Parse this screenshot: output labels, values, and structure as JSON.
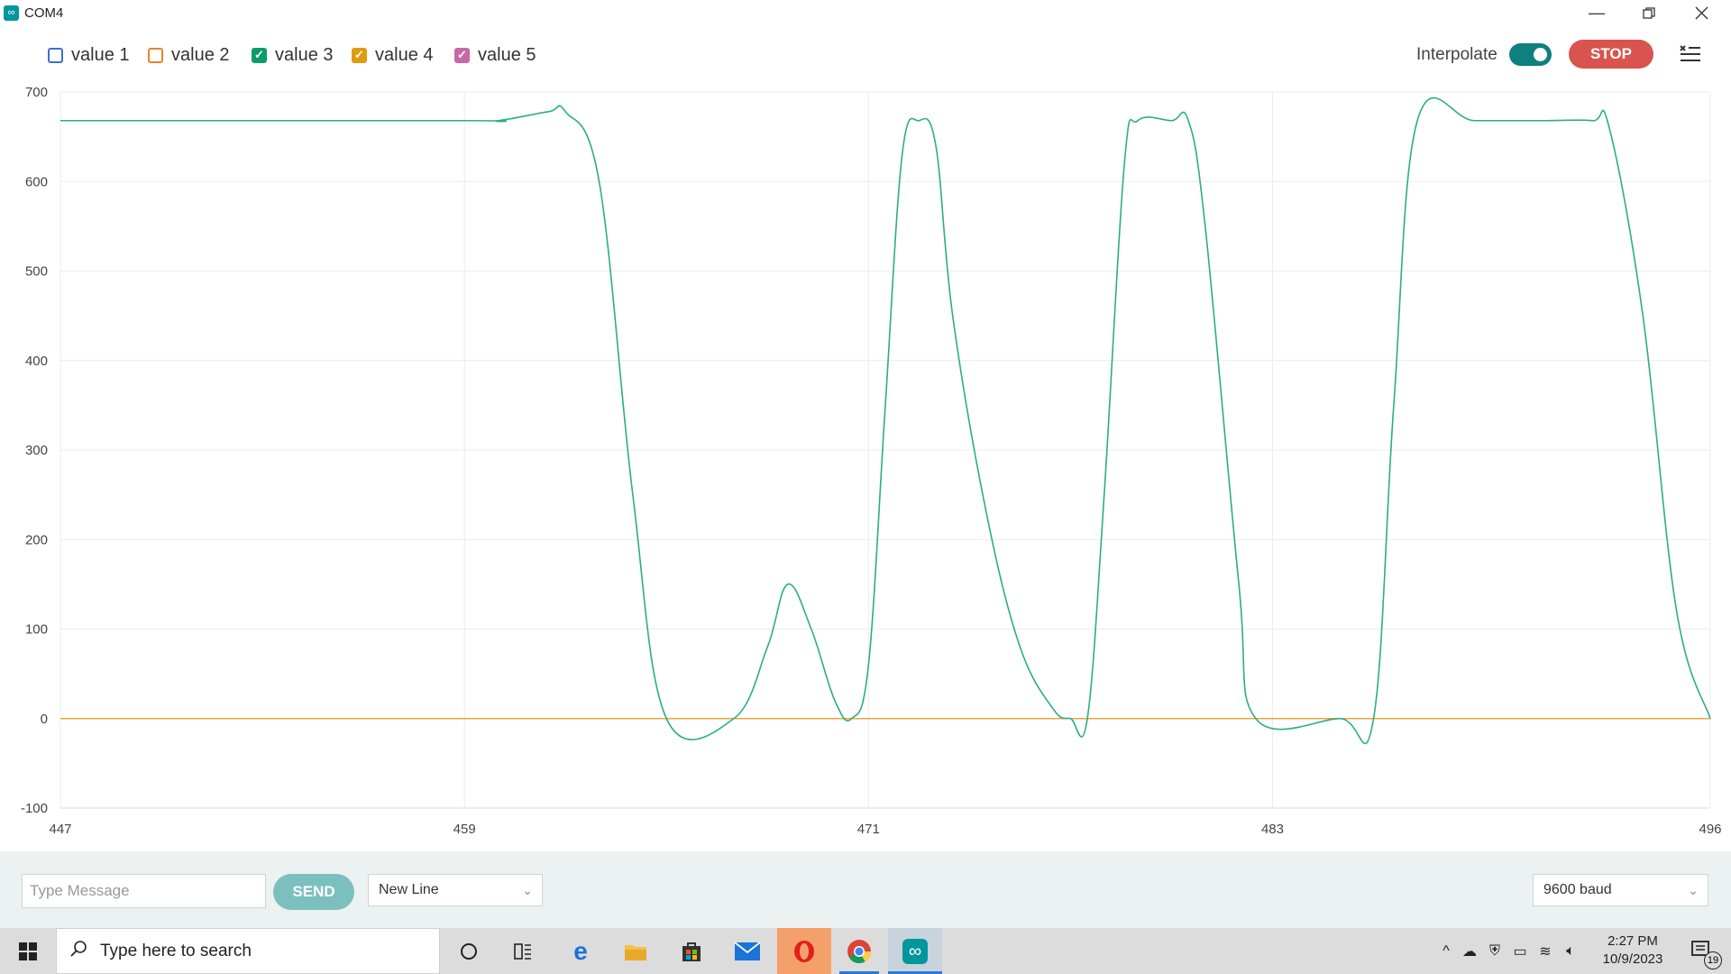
{
  "window": {
    "title": "COM4",
    "app_icon": "arduino-icon",
    "controls": [
      "minimize-icon",
      "restore-icon",
      "close-icon"
    ]
  },
  "legend": [
    {
      "label": "value 1",
      "checked": false,
      "color": "#3f6fd0"
    },
    {
      "label": "value 2",
      "checked": false,
      "color": "#e8832a"
    },
    {
      "label": "value 3",
      "checked": true,
      "color": "#0c9c6c"
    },
    {
      "label": "value 4",
      "checked": true,
      "color": "#e09b10"
    },
    {
      "label": "value 5",
      "checked": true,
      "color": "#c66aa6"
    }
  ],
  "toolbar": {
    "interpolate_label": "Interpolate",
    "interpolate_on": true,
    "stop_label": "STOP",
    "menu_icon": "clear-list-icon"
  },
  "chart_data": {
    "type": "line",
    "title": "",
    "xlabel": "",
    "ylabel": "",
    "xlim": [
      447,
      496
    ],
    "ylim": [
      -100,
      700
    ],
    "x_ticks": [
      447,
      459,
      471,
      483,
      496
    ],
    "y_ticks": [
      700,
      600,
      500,
      400,
      300,
      200,
      100,
      0,
      -100
    ],
    "grid": true,
    "interpolated": true,
    "series": [
      {
        "name": "value 3",
        "color": "#2bae84",
        "points": [
          [
            447,
            668
          ],
          [
            459,
            668
          ],
          [
            460,
            668
          ],
          [
            461.5,
            678
          ],
          [
            462,
            678
          ],
          [
            463,
            600
          ],
          [
            464,
            250
          ],
          [
            465,
            0
          ],
          [
            467,
            0
          ],
          [
            468,
            80
          ],
          [
            468.6,
            150
          ],
          [
            469.3,
            100
          ],
          [
            470,
            20
          ],
          [
            470.5,
            0
          ],
          [
            471,
            60
          ],
          [
            471.5,
            350
          ],
          [
            472,
            630
          ],
          [
            472.5,
            668
          ],
          [
            473,
            640
          ],
          [
            473.5,
            450
          ],
          [
            474.5,
            230
          ],
          [
            475.5,
            80
          ],
          [
            476.5,
            10
          ],
          [
            477,
            0
          ],
          [
            477.5,
            0
          ],
          [
            478,
            250
          ],
          [
            478.6,
            620
          ],
          [
            479,
            668
          ],
          [
            480,
            668
          ],
          [
            480.5,
            668
          ],
          [
            481,
            550
          ],
          [
            482,
            150
          ],
          [
            482.5,
            0
          ],
          [
            485,
            0
          ],
          [
            486,
            0
          ],
          [
            486.6,
            350
          ],
          [
            487.3,
            668
          ],
          [
            489,
            668
          ],
          [
            491,
            668
          ],
          [
            492.5,
            668
          ],
          [
            493,
            660
          ],
          [
            494,
            450
          ],
          [
            495,
            120
          ],
          [
            496,
            0
          ]
        ]
      },
      {
        "name": "value 4",
        "color": "#e8a53a",
        "points": [
          [
            447,
            0
          ],
          [
            496,
            0
          ]
        ]
      },
      {
        "name": "value 5",
        "color": "#c66aa6",
        "points": [
          [
            447,
            0
          ],
          [
            496,
            0
          ]
        ]
      }
    ]
  },
  "input_bar": {
    "message_placeholder": "Type Message",
    "send_label": "SEND",
    "line_ending": "New Line",
    "baud": "9600 baud"
  },
  "taskbar": {
    "search_placeholder": "Type here to search",
    "time": "2:27 PM",
    "date": "10/9/2023",
    "notification_count": "19"
  }
}
